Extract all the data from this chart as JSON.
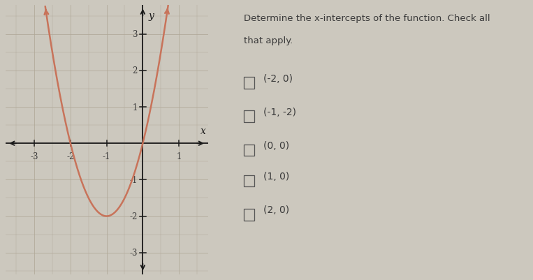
{
  "bg_color": "#ccc8be",
  "graph_bg_color": "#e2ddd4",
  "curve_color": "#c8735a",
  "curve_linewidth": 1.8,
  "axis_color": "#1a1a1a",
  "grid_color_major": "#b0a898",
  "grid_color_minor": "#c8c0b4",
  "text_color": "#3a3a3a",
  "xlim": [
    -3.8,
    1.8
  ],
  "ylim": [
    -3.6,
    3.8
  ],
  "xticks": [
    -3,
    -2,
    -1,
    1
  ],
  "yticks": [
    -3,
    -2,
    -1,
    1,
    2,
    3
  ],
  "xlabel": "x",
  "ylabel": "y",
  "title_line1": "Determine the x-intercepts of the function. Check all",
  "title_line2": "that apply.",
  "options": [
    "(-2, 0)",
    "(-1, -2)",
    "(0, 0)",
    "(1, 0)",
    "(2, 0)"
  ]
}
